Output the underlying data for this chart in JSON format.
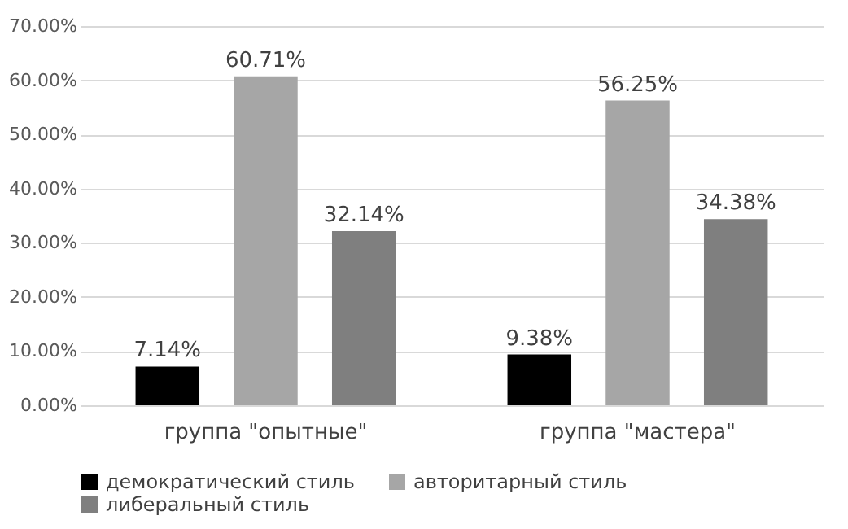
{
  "chart_data": {
    "type": "bar",
    "categories": [
      "группа \"опытные\"",
      "группа \"мастера\""
    ],
    "series": [
      {
        "name": "демократический стиль",
        "color": "#000000",
        "values": [
          7.14,
          9.38
        ],
        "value_labels": [
          "7.14%",
          "9.38%"
        ]
      },
      {
        "name": "авторитарный стиль",
        "color": "#a6a6a6",
        "values": [
          60.71,
          56.25
        ],
        "value_labels": [
          "60.71%",
          "56.25%"
        ]
      },
      {
        "name": "либеральный стиль",
        "color": "#7f7f7f",
        "values": [
          32.14,
          34.38
        ],
        "value_labels": [
          "32.14%",
          "34.38%"
        ]
      }
    ],
    "ylim": [
      0,
      70
    ],
    "yticks": [
      {
        "value": 0,
        "label": "0.00%"
      },
      {
        "value": 10,
        "label": "10.00%"
      },
      {
        "value": 20,
        "label": "20.00%"
      },
      {
        "value": 30,
        "label": "30.00%"
      },
      {
        "value": 40,
        "label": "40.00%"
      },
      {
        "value": 50,
        "label": "50.00%"
      },
      {
        "value": 60,
        "label": "60.00%"
      },
      {
        "value": 70,
        "label": "70.00%"
      }
    ],
    "grid": "y",
    "legend": "bottom"
  }
}
